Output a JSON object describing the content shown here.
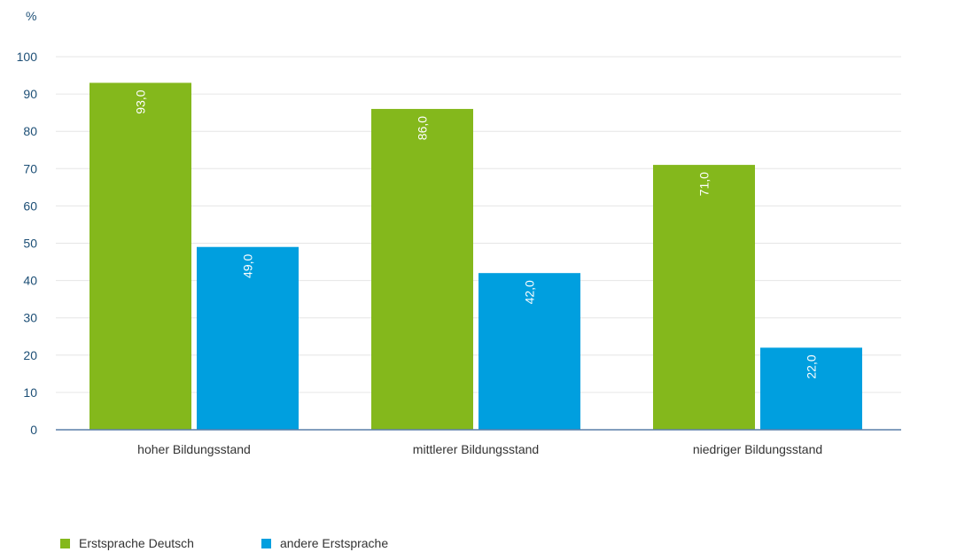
{
  "chart_data": {
    "type": "bar",
    "unit_label": "%",
    "categories": [
      "hoher Bildungsstand",
      "mittlerer Bildungsstand",
      "niedriger Bildungsstand"
    ],
    "series": [
      {
        "name": "Erstsprache Deutsch",
        "color": "#84b81c",
        "values": [
          93.0,
          86.0,
          71.0
        ],
        "labels": [
          "93,0",
          "86,0",
          "71,0"
        ]
      },
      {
        "name": "andere Erstsprache",
        "color": "#009fdf",
        "values": [
          49.0,
          42.0,
          22.0
        ],
        "labels": [
          "49,0",
          "42,0",
          "22,0"
        ]
      }
    ],
    "ylim": [
      0,
      100
    ],
    "yticks": [
      0,
      10,
      20,
      30,
      40,
      50,
      60,
      70,
      80,
      90,
      100
    ],
    "grid": true,
    "legend_position": "bottom-left",
    "value_label_orientation": "vertical"
  }
}
